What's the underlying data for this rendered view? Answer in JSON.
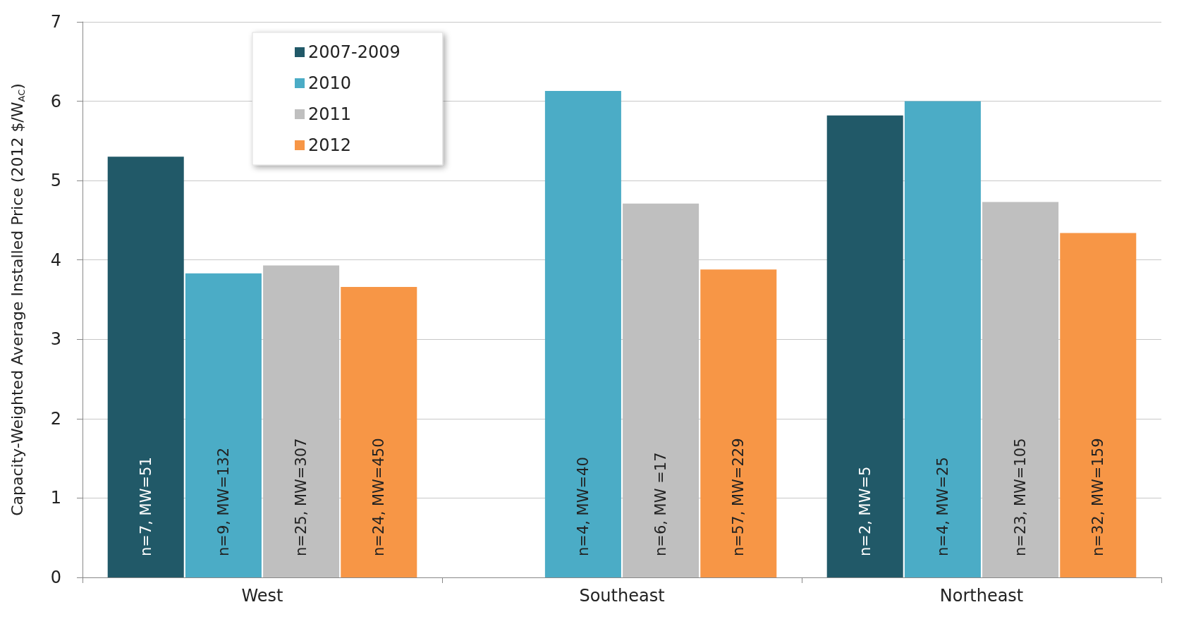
{
  "chart_data": {
    "type": "bar",
    "ylabel": "Capacity-Weighted Average Installed Price (2012 $/W$_{AC}$)",
    "categories": [
      "West",
      "Southeast",
      "Northeast"
    ],
    "series": [
      {
        "name": "2007-2009",
        "color": "#215968",
        "values": [
          5.3,
          null,
          5.82
        ],
        "value_labels": [
          "n=7, MW=51",
          null,
          "n=2, MW=5"
        ]
      },
      {
        "name": "2010",
        "color": "#4bacc6",
        "values": [
          3.83,
          6.13,
          6.0
        ],
        "value_labels": [
          "n=9, MW=132",
          "n=4, MW=40",
          "n=4, MW=25"
        ]
      },
      {
        "name": "2011",
        "color": "#bfbfbf",
        "values": [
          3.93,
          4.71,
          4.73
        ],
        "value_labels": [
          "n=25, MW=307",
          "n=6, MW =17",
          "n=23, MW=105"
        ]
      },
      {
        "name": "2012",
        "color": "#f79646",
        "values": [
          3.66,
          3.88,
          4.34
        ],
        "value_labels": [
          "n=24, MW=450",
          "n=57, MW=229",
          "n=32, MW=159"
        ]
      }
    ],
    "ylim": [
      0,
      7
    ],
    "yticks": [
      0,
      1,
      2,
      3,
      4,
      5,
      6,
      7
    ],
    "grid": "y",
    "legend": "top left"
  }
}
